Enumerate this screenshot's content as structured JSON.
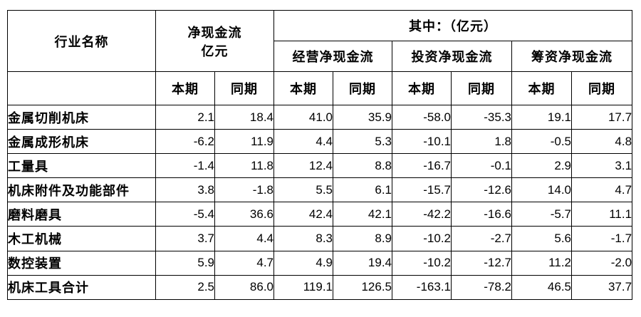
{
  "header": {
    "industry": "行业名称",
    "net_cash_line1": "净现金流",
    "net_cash_line2": "亿元",
    "of_which": "其中：（亿元）",
    "operating": "经营净现金流",
    "investing": "投资净现金流",
    "financing": "筹资净现金流",
    "current": "本期",
    "previous": "同期"
  },
  "rows": [
    {
      "name": "金属切削机床",
      "values": [
        "2.1",
        "18.4",
        "41.0",
        "35.9",
        "-58.0",
        "-35.3",
        "19.1",
        "17.7"
      ]
    },
    {
      "name": "金属成形机床",
      "values": [
        "-6.2",
        "11.9",
        "4.4",
        "5.3",
        "-10.1",
        "1.8",
        "-0.5",
        "4.8"
      ]
    },
    {
      "name": "工量具",
      "values": [
        "-1.4",
        "11.8",
        "12.4",
        "8.8",
        "-16.7",
        "-0.1",
        "2.9",
        "3.1"
      ]
    },
    {
      "name": "机床附件及功能部件",
      "values": [
        "3.8",
        "-1.8",
        "5.5",
        "6.1",
        "-15.7",
        "-12.6",
        "14.0",
        "4.7"
      ]
    },
    {
      "name": "磨料磨具",
      "values": [
        "-5.4",
        "36.6",
        "42.4",
        "42.1",
        "-42.2",
        "-16.6",
        "-5.7",
        "11.1"
      ]
    },
    {
      "name": "木工机械",
      "values": [
        "3.7",
        "4.4",
        "8.3",
        "8.9",
        "-10.2",
        "-2.7",
        "5.6",
        "-1.7"
      ]
    },
    {
      "name": "数控装置",
      "values": [
        "5.9",
        "4.7",
        "4.9",
        "19.4",
        "-10.2",
        "-12.7",
        "11.2",
        "-2.0"
      ]
    },
    {
      "name": "机床工具合计",
      "values": [
        "2.5",
        "86.0",
        "119.1",
        "126.5",
        "-163.1",
        "-78.2",
        "46.5",
        "37.7"
      ]
    }
  ]
}
